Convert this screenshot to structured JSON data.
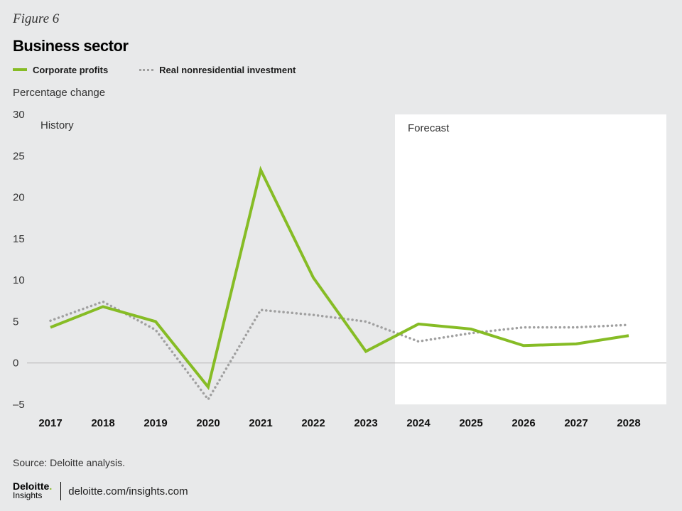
{
  "figure_label": "Figure 6",
  "title": "Business sector",
  "source": "Source: Deloitte analysis.",
  "footer": {
    "logo_name": "Deloitte",
    "logo_dot": ".",
    "logo_sub": "Insights",
    "link": "deloitte.com/insights.com"
  },
  "chart_data": {
    "type": "line",
    "ylabel": "Percentage change",
    "categories": [
      "2017",
      "2018",
      "2019",
      "2020",
      "2021",
      "2022",
      "2023",
      "2024",
      "2025",
      "2026",
      "2027",
      "2028"
    ],
    "ylim": [
      -5,
      30
    ],
    "yticks": [
      {
        "value": 30,
        "label": "30"
      },
      {
        "value": 25,
        "label": "25"
      },
      {
        "value": 20,
        "label": "20"
      },
      {
        "value": 15,
        "label": "15"
      },
      {
        "value": 10,
        "label": "10"
      },
      {
        "value": 5,
        "label": "5"
      },
      {
        "value": 0,
        "label": "0"
      },
      {
        "value": -5,
        "label": "–5"
      }
    ],
    "grid": false,
    "legend_position": "top-left",
    "regions": [
      {
        "label": "History",
        "from": "2017",
        "to": "2023"
      },
      {
        "label": "Forecast",
        "from": "2024",
        "to": "2028"
      }
    ],
    "series": [
      {
        "name": "Corporate profits",
        "style": "solid",
        "color": "#86bc25",
        "values": [
          4.3,
          6.8,
          5.0,
          -2.9,
          23.3,
          10.3,
          1.4,
          4.7,
          4.1,
          2.1,
          2.3,
          3.3
        ]
      },
      {
        "name": "Real nonresidential investment",
        "style": "dotted",
        "color": "#a0a0a0",
        "values": [
          5.1,
          7.4,
          4.0,
          -4.4,
          6.4,
          5.8,
          5.0,
          2.6,
          3.6,
          4.3,
          4.3,
          4.6
        ]
      }
    ]
  }
}
